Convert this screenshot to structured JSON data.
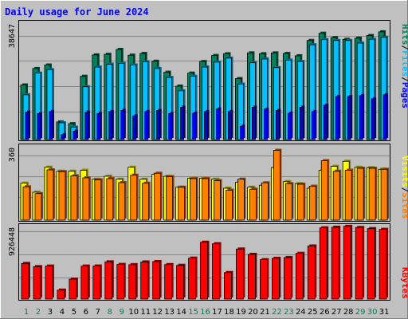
{
  "title": "Daily usage for June 2024",
  "colors": {
    "outer_bg": "#c0c0c0",
    "plot_bg": "#c0c0c0",
    "hits": "#00805c",
    "files": "#00c0ff",
    "pages": "#0000ff",
    "visits": "#ffff00",
    "sites": "#ff8000",
    "kbytes": "#ff0000",
    "title": "#0000ff",
    "day_weekend": "#00805c",
    "day_weekday": "#000000"
  },
  "labels": {
    "top_max": "38647",
    "mid_max": "360",
    "bot_max": "926448",
    "hits": "Hits",
    "files": "Files",
    "pages": "Pages",
    "visits": "Visits",
    "sites": "Sites",
    "kbytes": "KBytes",
    "slash": "/"
  },
  "chart_data": [
    {
      "type": "bar",
      "title": "Daily usage for June 2024",
      "panel": "requests",
      "categories": [
        "1",
        "2",
        "3",
        "4",
        "5",
        "6",
        "7",
        "8",
        "9",
        "10",
        "11",
        "12",
        "13",
        "14",
        "15",
        "16",
        "17",
        "18",
        "19",
        "20",
        "21",
        "22",
        "23",
        "24",
        "25",
        "26",
        "27",
        "28",
        "29",
        "30",
        "31"
      ],
      "weekend_days": [
        "1",
        "2",
        "8",
        "9",
        "15",
        "16",
        "22",
        "23",
        "29",
        "30"
      ],
      "ylim": [
        0,
        38647
      ],
      "ymax_label": "38647",
      "series": [
        {
          "name": "Hits",
          "values": [
            18900,
            24600,
            25800,
            6100,
            5500,
            21900,
            29300,
            29500,
            31200,
            29200,
            29800,
            27100,
            23300,
            18500,
            23000,
            27000,
            29100,
            29700,
            21100,
            30000,
            29700,
            30000,
            29800,
            29000,
            34300,
            36800,
            35300,
            34700,
            35100,
            36000,
            37300
          ]
        },
        {
          "name": "Files",
          "values": [
            15500,
            23000,
            24200,
            5800,
            4300,
            18300,
            25100,
            26100,
            26400,
            25800,
            26900,
            24600,
            21500,
            16900,
            21900,
            25100,
            26800,
            28200,
            19200,
            26600,
            27900,
            24900,
            27500,
            27000,
            32800,
            34600,
            34300,
            34300,
            33400,
            34700,
            35400
          ]
        },
        {
          "name": "Pages",
          "values": [
            9500,
            9000,
            9700,
            1700,
            2900,
            9500,
            9000,
            9700,
            10100,
            8200,
            9700,
            10100,
            9000,
            11200,
            9100,
            9700,
            10600,
            9700,
            4600,
            11200,
            10500,
            10100,
            9100,
            11200,
            9700,
            11900,
            14900,
            14900,
            15200,
            14100,
            15500
          ]
        }
      ]
    },
    {
      "type": "bar",
      "panel": "visitors",
      "categories": [
        "1",
        "2",
        "3",
        "4",
        "5",
        "6",
        "7",
        "8",
        "9",
        "10",
        "11",
        "12",
        "13",
        "14",
        "15",
        "16",
        "17",
        "18",
        "19",
        "20",
        "21",
        "22",
        "23",
        "24",
        "25",
        "26",
        "27",
        "28",
        "29",
        "30",
        "31"
      ],
      "ylim": [
        0,
        360
      ],
      "ymax_label": "360",
      "series": [
        {
          "name": "Visits",
          "values": [
            185,
            140,
            265,
            245,
            245,
            250,
            205,
            220,
            205,
            265,
            205,
            230,
            220,
            165,
            210,
            210,
            205,
            160,
            190,
            165,
            175,
            263,
            193,
            183,
            160,
            250,
            270,
            295,
            265,
            263,
            255
          ]
        },
        {
          "name": "Sites",
          "values": [
            167,
            133,
            252,
            243,
            222,
            212,
            202,
            208,
            188,
            225,
            185,
            235,
            218,
            165,
            208,
            208,
            198,
            150,
            205,
            155,
            187,
            350,
            183,
            180,
            170,
            298,
            245,
            250,
            260,
            260,
            255
          ]
        }
      ]
    },
    {
      "type": "bar",
      "panel": "kbytes",
      "categories": [
        "1",
        "2",
        "3",
        "4",
        "5",
        "6",
        "7",
        "8",
        "9",
        "10",
        "11",
        "12",
        "13",
        "14",
        "15",
        "16",
        "17",
        "18",
        "19",
        "20",
        "21",
        "22",
        "23",
        "24",
        "25",
        "26",
        "27",
        "28",
        "29",
        "30",
        "31"
      ],
      "ylim": [
        0,
        926448
      ],
      "ymax_label": "926448",
      "series": [
        {
          "name": "KBytes",
          "values": [
            470000,
            428000,
            435000,
            118000,
            263000,
            435000,
            436000,
            491000,
            457000,
            454000,
            490000,
            495000,
            455000,
            445000,
            540000,
            750000,
            730000,
            350000,
            660000,
            590000,
            520000,
            538000,
            548000,
            603000,
            700000,
            940000,
            948000,
            960000,
            945000,
            930000,
            920000
          ]
        }
      ]
    }
  ]
}
